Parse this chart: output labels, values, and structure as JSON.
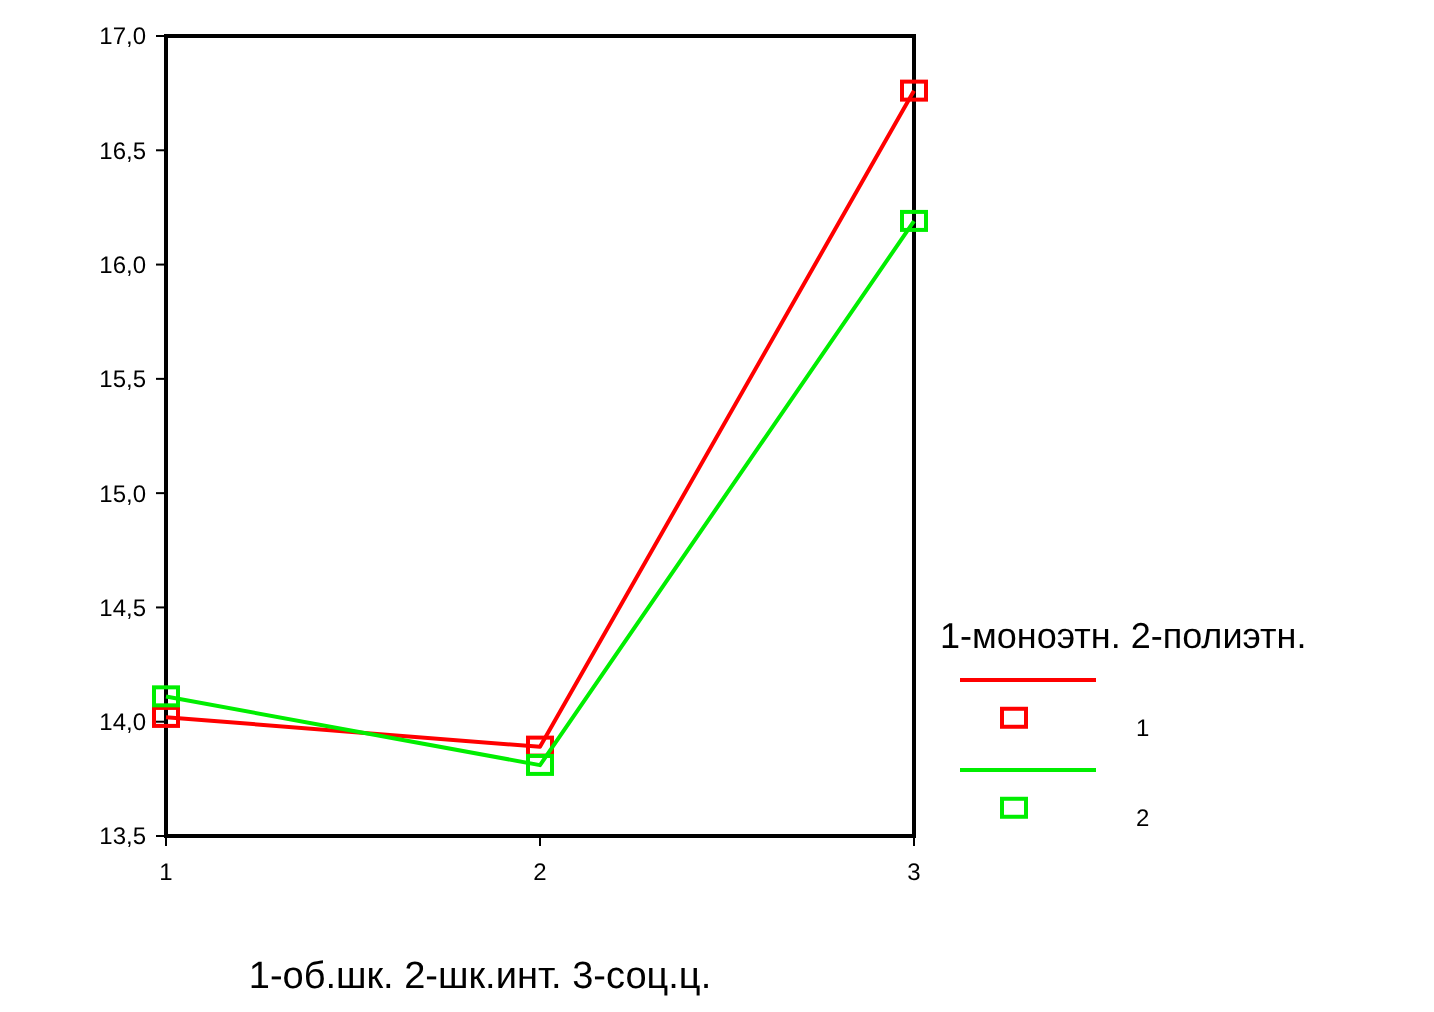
{
  "chart_data": {
    "type": "line",
    "xlabel": "1-об.шк. 2-шк.инт. 3-соц.ц.",
    "legend_title": "1-моноэтн. 2-полиэтн.",
    "x": [
      1,
      2,
      3
    ],
    "series": [
      {
        "name": "1",
        "color": "#ff0000",
        "values": [
          14.02,
          13.89,
          16.76
        ]
      },
      {
        "name": "2",
        "color": "#00ee00",
        "values": [
          14.11,
          13.81,
          16.19
        ]
      }
    ],
    "xlim": [
      1,
      3
    ],
    "xticks": [
      1,
      2,
      3
    ],
    "ylim": [
      13.5,
      17
    ],
    "yticks": [
      {
        "value": 13.5,
        "label": "13,5"
      },
      {
        "value": 14,
        "label": "14,0"
      },
      {
        "value": 14.5,
        "label": "14,5"
      },
      {
        "value": 15,
        "label": "15,0"
      },
      {
        "value": 15.5,
        "label": "15,5"
      },
      {
        "value": 16,
        "label": "16,0"
      },
      {
        "value": 16.5,
        "label": "16,5"
      },
      {
        "value": 17,
        "label": "17,0"
      }
    ],
    "marker": "square",
    "line_style": "solid",
    "legend": "right",
    "grid": false
  }
}
